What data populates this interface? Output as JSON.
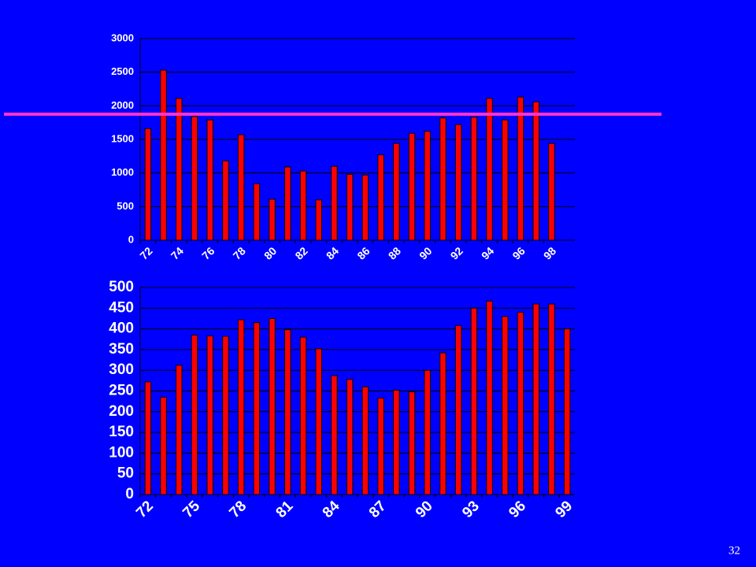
{
  "chart_data": [
    {
      "type": "bar",
      "categories": [
        "72",
        null,
        "74",
        null,
        "76",
        null,
        "78",
        null,
        "80",
        null,
        "82",
        null,
        "84",
        null,
        "86",
        null,
        "88",
        null,
        "90",
        null,
        "92",
        null,
        "94",
        null,
        "96",
        null,
        "98"
      ],
      "values": [
        1660,
        2530,
        2110,
        1840,
        1790,
        1180,
        1570,
        840,
        610,
        1090,
        1030,
        600,
        1100,
        980,
        970,
        1270,
        1440,
        1590,
        1620,
        1820,
        1720,
        1830,
        2110,
        1790,
        2130,
        2060,
        1440
      ],
      "color": "#ff0000",
      "ylim": [
        0,
        3000
      ],
      "yticks": [
        0,
        500,
        1000,
        1500,
        2000,
        2500,
        3000
      ],
      "grid": true,
      "reference_line": {
        "value": 1875,
        "color": "#ff33cc"
      }
    },
    {
      "type": "bar",
      "categories": [
        "72",
        null,
        null,
        "75",
        null,
        null,
        "78",
        null,
        null,
        "81",
        null,
        null,
        "84",
        null,
        null,
        "87",
        null,
        null,
        "90",
        null,
        null,
        "93",
        null,
        null,
        "96",
        null,
        null,
        "99"
      ],
      "values": [
        272,
        235,
        312,
        385,
        383,
        382,
        422,
        415,
        425,
        398,
        380,
        352,
        287,
        278,
        260,
        233,
        252,
        248,
        300,
        342,
        408,
        450,
        467,
        430,
        440,
        460,
        460,
        400
      ],
      "color": "#ff0000",
      "ylim": [
        0,
        500
      ],
      "yticks": [
        0,
        50,
        100,
        150,
        200,
        250,
        300,
        350,
        400,
        450,
        500
      ],
      "grid": true
    }
  ],
  "page_number": "32"
}
